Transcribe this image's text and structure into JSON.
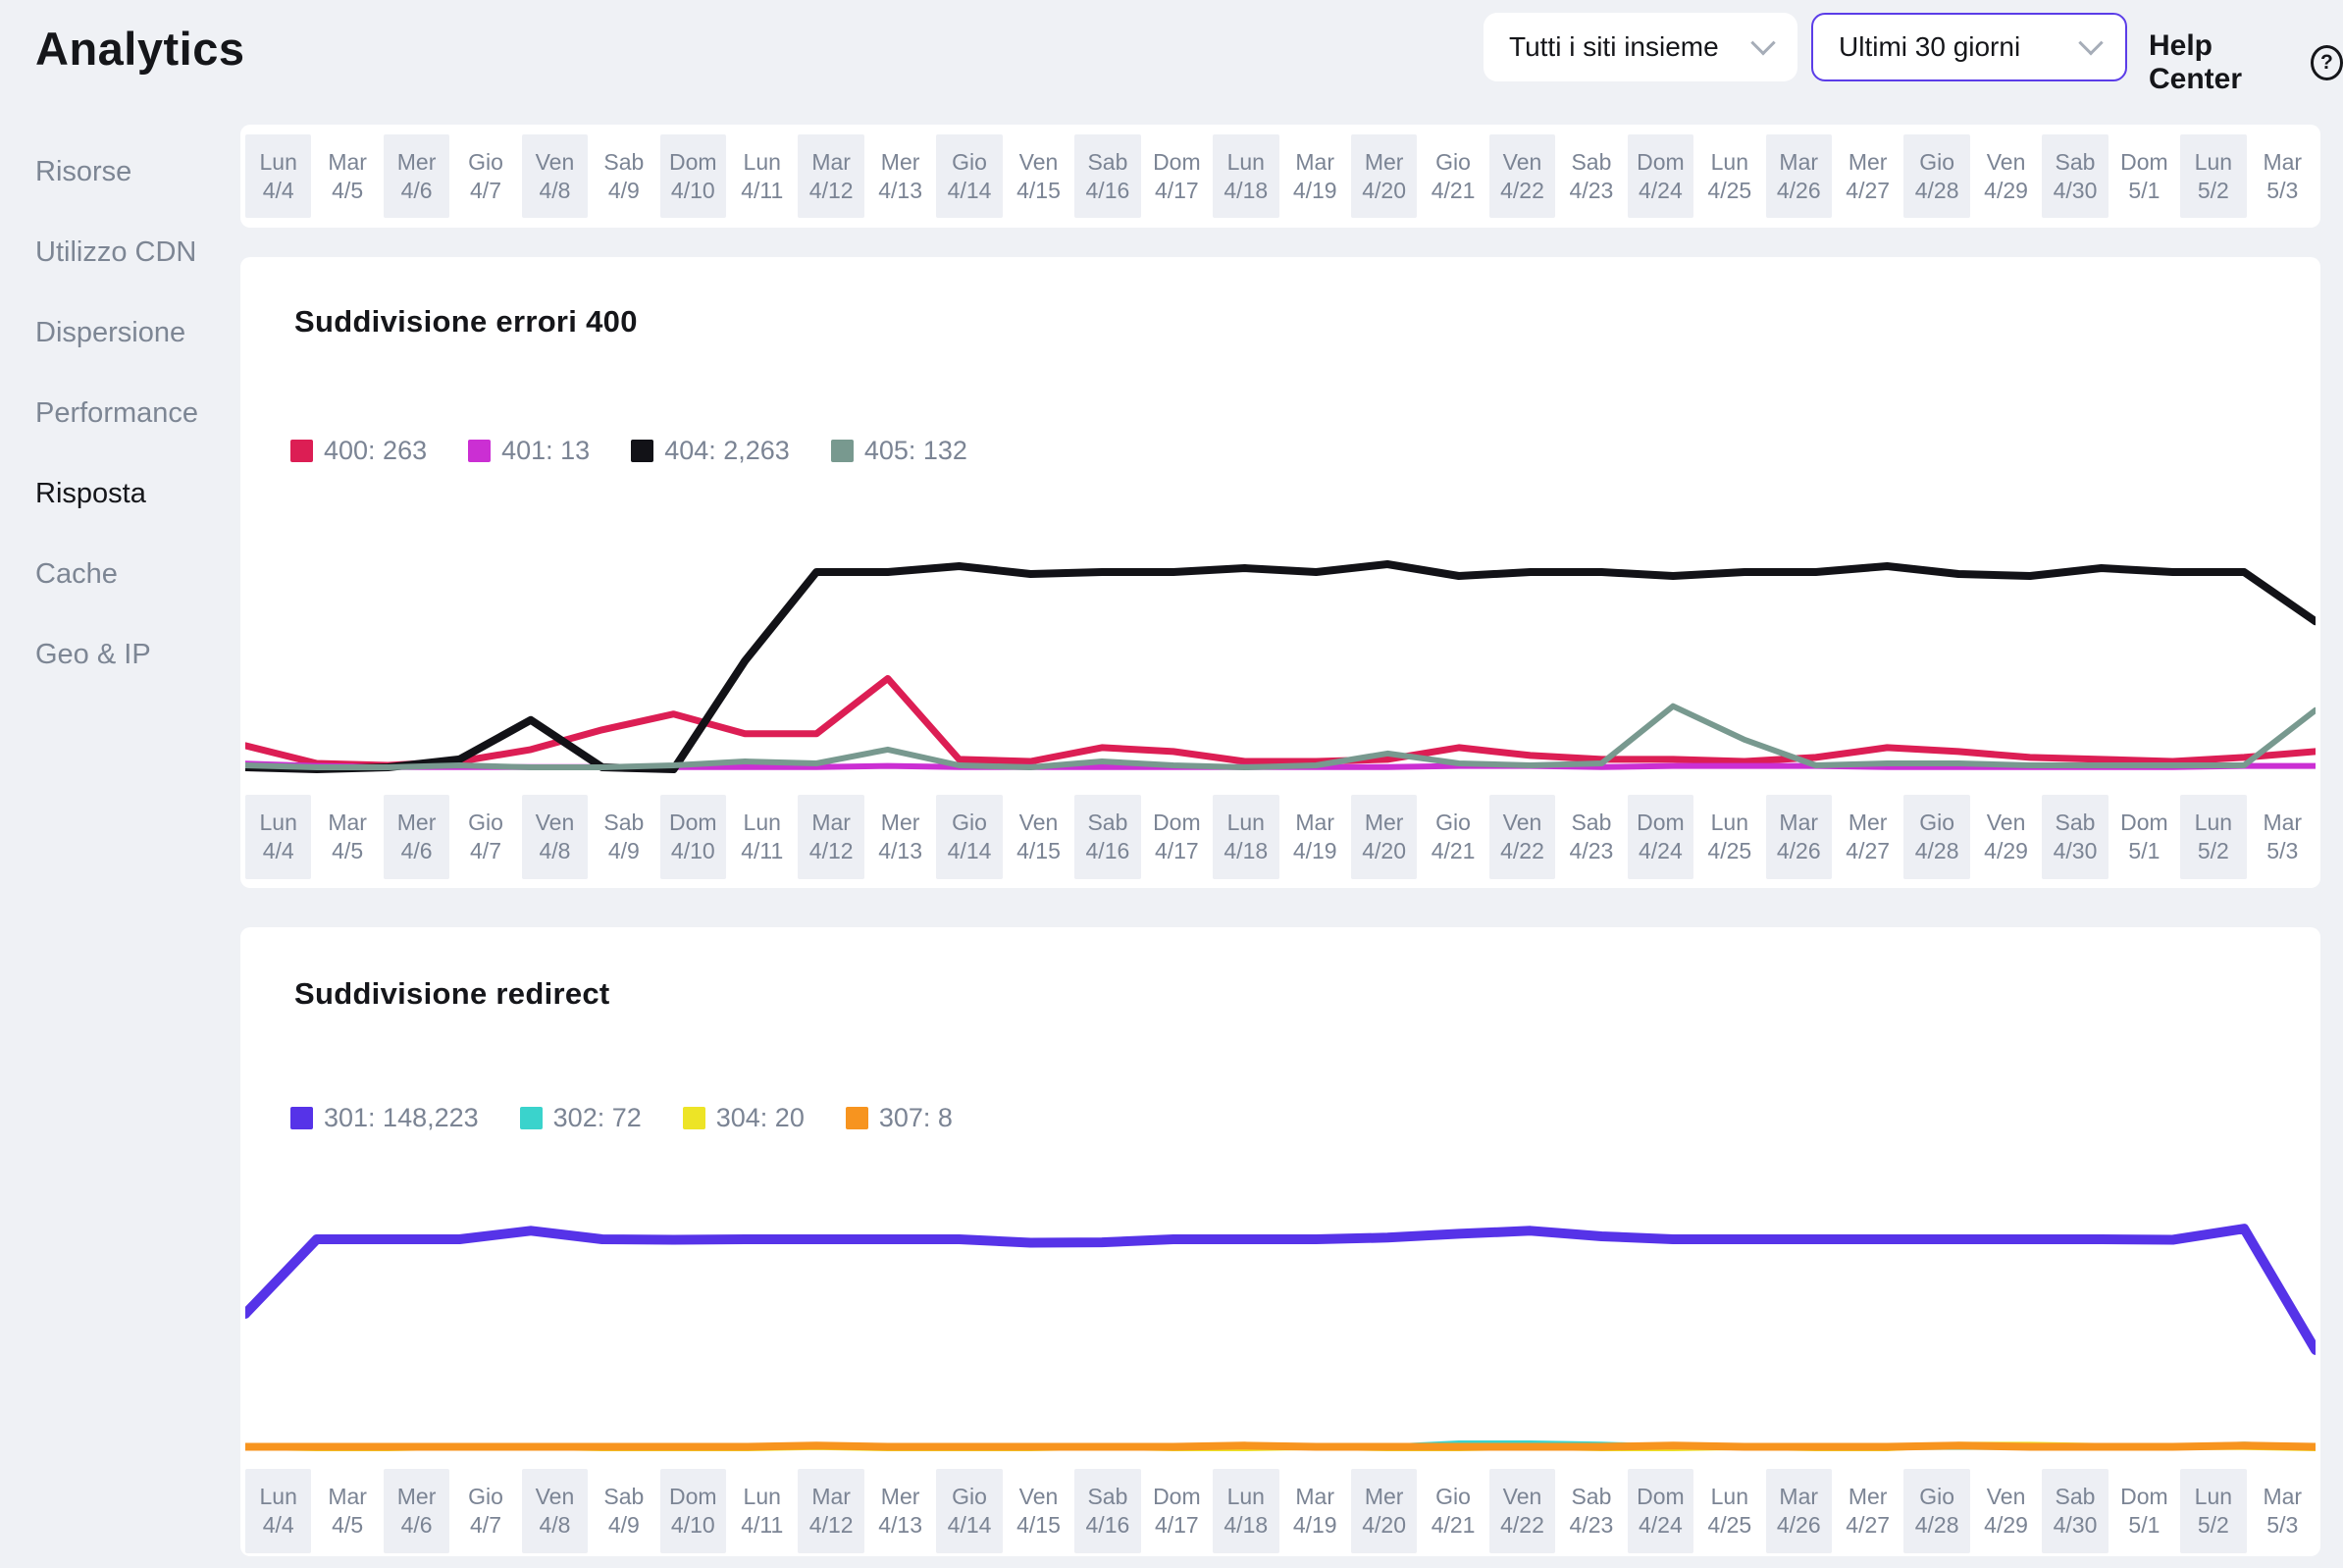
{
  "page": {
    "title": "Analytics"
  },
  "header": {
    "site_selector": "Tutti i siti insieme",
    "date_range": "Ultimi 30 giorni",
    "help_label": "Help Center",
    "help_icon": "?"
  },
  "sidebar": {
    "items": [
      {
        "label": "Risorse",
        "active": false
      },
      {
        "label": "Utilizzo CDN",
        "active": false
      },
      {
        "label": "Dispersione",
        "active": false
      },
      {
        "label": "Performance",
        "active": false
      },
      {
        "label": "Risposta",
        "active": true
      },
      {
        "label": "Cache",
        "active": false
      },
      {
        "label": "Geo & IP",
        "active": false
      }
    ]
  },
  "timeline": {
    "days": [
      {
        "day": "Lun",
        "date": "4/4"
      },
      {
        "day": "Mar",
        "date": "4/5"
      },
      {
        "day": "Mer",
        "date": "4/6"
      },
      {
        "day": "Gio",
        "date": "4/7"
      },
      {
        "day": "Ven",
        "date": "4/8"
      },
      {
        "day": "Sab",
        "date": "4/9"
      },
      {
        "day": "Dom",
        "date": "4/10"
      },
      {
        "day": "Lun",
        "date": "4/11"
      },
      {
        "day": "Mar",
        "date": "4/12"
      },
      {
        "day": "Mer",
        "date": "4/13"
      },
      {
        "day": "Gio",
        "date": "4/14"
      },
      {
        "day": "Ven",
        "date": "4/15"
      },
      {
        "day": "Sab",
        "date": "4/16"
      },
      {
        "day": "Dom",
        "date": "4/17"
      },
      {
        "day": "Lun",
        "date": "4/18"
      },
      {
        "day": "Mar",
        "date": "4/19"
      },
      {
        "day": "Mer",
        "date": "4/20"
      },
      {
        "day": "Gio",
        "date": "4/21"
      },
      {
        "day": "Ven",
        "date": "4/22"
      },
      {
        "day": "Sab",
        "date": "4/23"
      },
      {
        "day": "Dom",
        "date": "4/24"
      },
      {
        "day": "Lun",
        "date": "4/25"
      },
      {
        "day": "Mar",
        "date": "4/26"
      },
      {
        "day": "Mer",
        "date": "4/27"
      },
      {
        "day": "Gio",
        "date": "4/28"
      },
      {
        "day": "Ven",
        "date": "4/29"
      },
      {
        "day": "Sab",
        "date": "4/30"
      },
      {
        "day": "Dom",
        "date": "5/1"
      },
      {
        "day": "Lun",
        "date": "5/2"
      },
      {
        "day": "Mar",
        "date": "5/3"
      }
    ]
  },
  "chart_data": [
    {
      "type": "line",
      "title": "Suddivisione errori 400",
      "xlabel": "",
      "ylabel": "",
      "grid": false,
      "legend_position": "top",
      "ylim": [
        0,
        120
      ],
      "categories": [
        "4/4",
        "4/5",
        "4/6",
        "4/7",
        "4/8",
        "4/9",
        "4/10",
        "4/11",
        "4/12",
        "4/13",
        "4/14",
        "4/15",
        "4/16",
        "4/17",
        "4/18",
        "4/19",
        "4/20",
        "4/21",
        "4/22",
        "4/23",
        "4/24",
        "4/25",
        "4/26",
        "4/27",
        "4/28",
        "4/29",
        "4/30",
        "5/1",
        "5/2",
        "5/3"
      ],
      "series": [
        {
          "name": "400",
          "total": "263",
          "legend": "400: 263",
          "color": "#dc1e54",
          "values": [
            12,
            3,
            2,
            4,
            10,
            20,
            28,
            18,
            18,
            46,
            5,
            4,
            11,
            9,
            4,
            4,
            5,
            11,
            7,
            5,
            5,
            4,
            6,
            11,
            9,
            6,
            5,
            4,
            6,
            9
          ]
        },
        {
          "name": "401",
          "total": "13",
          "legend": "401: 13",
          "color": "#cb2fd3",
          "values": [
            4,
            2,
            1,
            1,
            1,
            1,
            1,
            1,
            1,
            2,
            1,
            1,
            1,
            1,
            1,
            1,
            1,
            2,
            2,
            1,
            2,
            2,
            2,
            1,
            1,
            1,
            1,
            1,
            2,
            2
          ]
        },
        {
          "name": "404",
          "total": "2,263",
          "legend": "404: 2,263",
          "color": "#121217",
          "values": [
            1,
            0,
            1,
            5,
            25,
            1,
            0,
            55,
            100,
            100,
            103,
            99,
            100,
            100,
            102,
            100,
            104,
            98,
            100,
            100,
            98,
            100,
            100,
            103,
            99,
            98,
            102,
            100,
            100,
            75
          ]
        },
        {
          "name": "405",
          "total": "132",
          "legend": "405: 132",
          "color": "#78998f",
          "values": [
            2,
            1,
            1,
            2,
            1,
            1,
            2,
            4,
            3,
            10,
            2,
            1,
            4,
            2,
            1,
            2,
            8,
            3,
            2,
            3,
            32,
            15,
            2,
            3,
            3,
            2,
            2,
            2,
            2,
            30
          ]
        }
      ]
    },
    {
      "type": "line",
      "title": "Suddivisione redirect",
      "xlabel": "",
      "ylabel": "",
      "grid": false,
      "legend_position": "top",
      "ylim": [
        0,
        5800
      ],
      "categories": [
        "4/4",
        "4/5",
        "4/6",
        "4/7",
        "4/8",
        "4/9",
        "4/10",
        "4/11",
        "4/12",
        "4/13",
        "4/14",
        "4/15",
        "4/16",
        "4/17",
        "4/18",
        "4/19",
        "4/20",
        "4/21",
        "4/22",
        "4/23",
        "4/24",
        "4/25",
        "4/26",
        "4/27",
        "4/28",
        "4/29",
        "4/30",
        "5/1",
        "5/2",
        "5/3"
      ],
      "series": [
        {
          "name": "301",
          "total": "148,223",
          "legend": "301: 148,223",
          "color": "#5633e8",
          "values": [
            3200,
            4950,
            4950,
            4950,
            5150,
            4950,
            4940,
            4950,
            4950,
            4950,
            4950,
            4870,
            4880,
            4950,
            4950,
            4950,
            4990,
            5080,
            5150,
            5020,
            4950,
            4950,
            4950,
            4950,
            4950,
            4950,
            4950,
            4940,
            5200,
            2350
          ]
        },
        {
          "name": "302",
          "total": "72",
          "legend": "302: 72",
          "color": "#3ad3cc",
          "values": [
            2,
            2,
            2,
            2,
            2,
            2,
            2,
            2,
            2,
            2,
            2,
            2,
            2,
            2,
            2,
            2,
            2,
            5,
            5,
            4,
            2,
            2,
            2,
            2,
            2,
            2,
            2,
            2,
            4,
            2
          ]
        },
        {
          "name": "304",
          "total": "20",
          "legend": "304: 20",
          "color": "#ede426",
          "values": [
            1,
            0,
            0,
            1,
            1,
            0,
            0,
            0,
            1,
            0,
            0,
            0,
            1,
            0,
            0,
            1,
            0,
            0,
            1,
            0,
            0,
            1,
            0,
            0,
            3,
            3,
            2,
            1,
            1,
            0
          ]
        },
        {
          "name": "307",
          "total": "8",
          "legend": "307: 8",
          "color": "#f7941f",
          "values": [
            0,
            0,
            0,
            0,
            0,
            0,
            0,
            0,
            1,
            0,
            0,
            0,
            0,
            0,
            1,
            0,
            0,
            0,
            0,
            0,
            1,
            0,
            0,
            0,
            1,
            0,
            0,
            0,
            1,
            0
          ]
        }
      ]
    }
  ]
}
